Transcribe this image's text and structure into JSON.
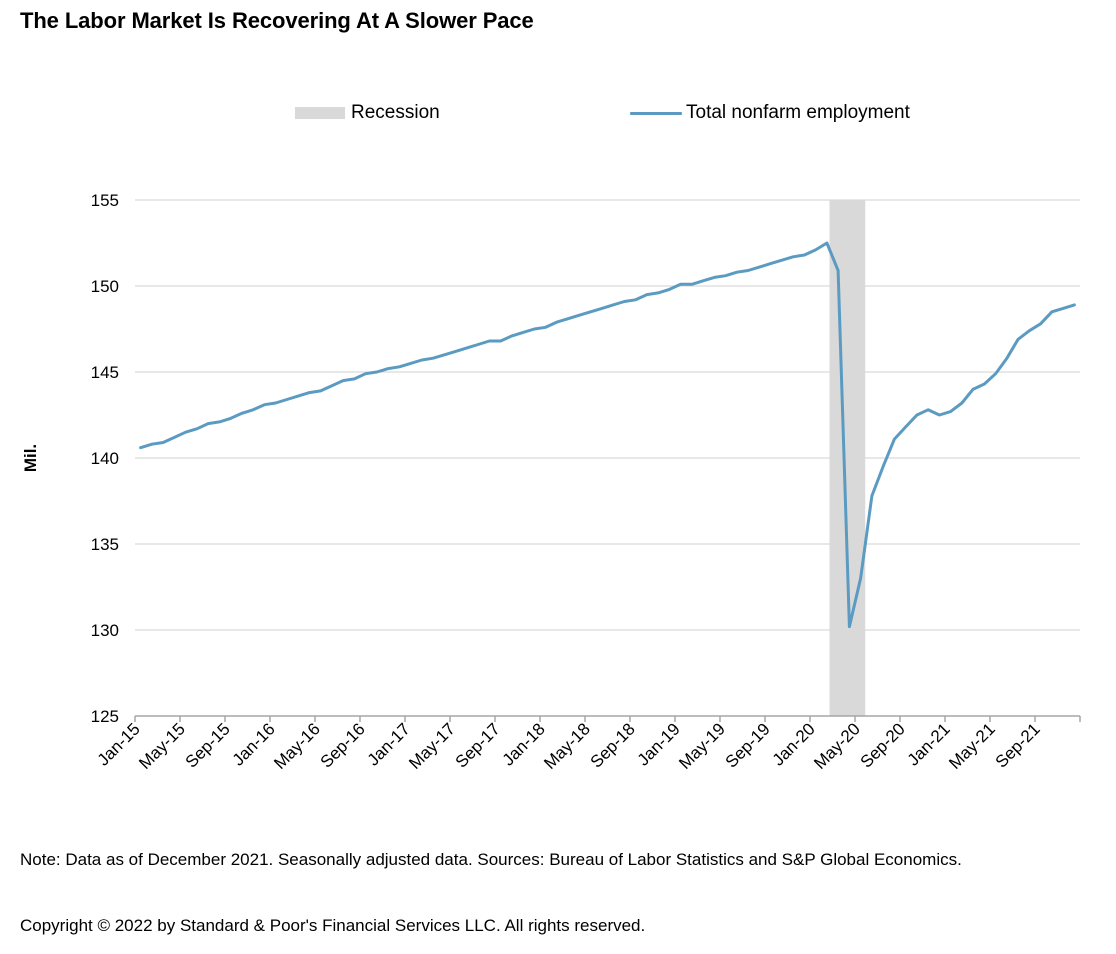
{
  "chart_data": {
    "type": "line",
    "title": "The Labor Market Is Recovering At A Slower Pace",
    "xlabel": "",
    "ylabel": "Mil.",
    "ylim": [
      125,
      155
    ],
    "yticks": [
      125,
      130,
      135,
      140,
      145,
      150,
      155
    ],
    "grid": true,
    "legend_position": "top-center",
    "x_tick_labels": [
      "Jan-15",
      "May-15",
      "Sep-15",
      "Jan-16",
      "May-16",
      "Sep-16",
      "Jan-17",
      "May-17",
      "Sep-17",
      "Jan-18",
      "May-18",
      "Sep-18",
      "Jan-19",
      "May-19",
      "Sep-19",
      "Jan-20",
      "May-20",
      "Sep-20",
      "Jan-21",
      "May-21",
      "Sep-21"
    ],
    "x_start": "Jan-15",
    "x_end": "Dec-21",
    "legend": [
      {
        "name": "Recession",
        "kind": "band",
        "color": "#d9d9d9"
      },
      {
        "name": "Total nonfarm employment",
        "kind": "line",
        "color": "#5b9bc2"
      }
    ],
    "recession": {
      "start": "Mar-20",
      "end": "May-20"
    },
    "series": [
      {
        "name": "Total nonfarm employment",
        "color": "#5b9bc2",
        "values": [
          140.6,
          140.8,
          140.9,
          141.2,
          141.5,
          141.7,
          142.0,
          142.1,
          142.3,
          142.6,
          142.8,
          143.1,
          143.2,
          143.4,
          143.6,
          143.8,
          143.9,
          144.2,
          144.5,
          144.6,
          144.9,
          145.0,
          145.2,
          145.3,
          145.5,
          145.7,
          145.8,
          146.0,
          146.2,
          146.4,
          146.6,
          146.8,
          146.8,
          147.1,
          147.3,
          147.5,
          147.6,
          147.9,
          148.1,
          148.3,
          148.5,
          148.7,
          148.9,
          149.1,
          149.2,
          149.5,
          149.6,
          149.8,
          150.1,
          150.1,
          150.3,
          150.5,
          150.6,
          150.8,
          150.9,
          151.1,
          151.3,
          151.5,
          151.7,
          151.8,
          152.1,
          152.5,
          150.9,
          130.2,
          133.0,
          137.8,
          139.5,
          141.1,
          141.8,
          142.5,
          142.8,
          142.5,
          142.7,
          143.2,
          144.0,
          144.3,
          144.9,
          145.8,
          146.9,
          147.4,
          147.8,
          148.5,
          148.7,
          148.9
        ]
      }
    ]
  },
  "header": {
    "title": "The Labor Market Is Recovering At A Slower Pace"
  },
  "legend": {
    "recession_label": "Recession",
    "employment_label": "Total nonfarm employment"
  },
  "footer": {
    "note": "Note: Data as of December 2021. Seasonally adjusted data. Sources: Bureau of Labor Statistics and S&P Global Economics.",
    "copyright": "Copyright © 2022 by Standard & Poor's Financial Services LLC. All rights reserved."
  }
}
